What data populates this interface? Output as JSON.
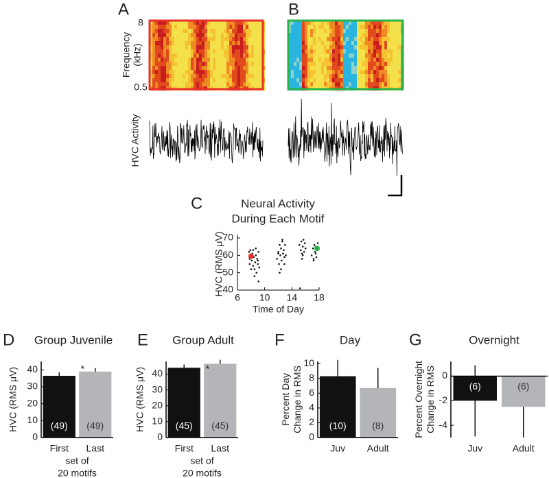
{
  "figure": {
    "panels": [
      "A",
      "B"
    ],
    "spectrogram_ylabel": [
      "Frequency",
      "(kHz)"
    ],
    "spectrogram_yticks": [
      8,
      0.5
    ],
    "trace_label": "HVC Activity"
  },
  "chart_data": [
    {
      "type": "scatter",
      "panel": "C",
      "title": [
        "Neural Activity",
        "During Each Motif"
      ],
      "ylabel": "HVC (RMS μV)",
      "xlabel": "Time of Day",
      "xlim": [
        6,
        18
      ],
      "xticks": [
        6,
        10,
        14,
        18
      ],
      "ylim": [
        40,
        70
      ],
      "yticks": [
        40,
        50,
        60,
        70
      ],
      "series": [
        {
          "color": "#111111",
          "x": [
            7.7,
            7.8,
            7.8,
            7.9,
            8.0,
            8.1,
            8.2,
            8.3,
            8.4,
            8.5,
            8.6,
            8.7,
            8.8,
            8.9,
            9.0,
            9.1,
            9.2,
            8.5,
            8.7,
            9.0,
            9.1,
            8.3,
            8.0,
            11.8,
            12.0,
            12.1,
            12.2,
            12.3,
            12.4,
            12.5,
            12.6,
            12.7,
            12.8,
            12.9,
            13.0,
            13.1,
            12.4,
            12.6,
            12.2,
            12.9,
            12.0,
            15.1,
            15.3,
            15.4,
            15.5,
            15.6,
            15.7,
            15.8,
            15.9,
            16.0,
            15.5,
            15.6,
            15.2,
            16.9,
            17.1,
            17.2,
            17.3,
            17.4,
            17.5,
            17.6,
            17.7,
            17.8,
            17.2,
            17.5
          ],
          "values": [
            62,
            58,
            55,
            63,
            60,
            57,
            61,
            54,
            59,
            52,
            56,
            60,
            50,
            58,
            55,
            62,
            53,
            48,
            64,
            57,
            45,
            63,
            52,
            58,
            62,
            55,
            66,
            60,
            64,
            57,
            68,
            61,
            63,
            59,
            66,
            60,
            52,
            69,
            50,
            55,
            61,
            66,
            63,
            68,
            61,
            65,
            69,
            62,
            67,
            64,
            58,
            60,
            41,
            60,
            64,
            58,
            66,
            62,
            65,
            59,
            63,
            67,
            57,
            61
          ]
        },
        {
          "color": "#e8302a",
          "x": [
            8.0
          ],
          "values": [
            59.5
          ]
        },
        {
          "color": "#27b24a",
          "x": [
            17.7
          ],
          "values": [
            64
          ]
        }
      ]
    },
    {
      "type": "bar",
      "panel": "D",
      "title": "Group Juvenile",
      "ylabel": [
        "HVC (RMS μV)"
      ],
      "xlabel": [
        "set of",
        "20 motifs"
      ],
      "categories": [
        "First",
        "Last"
      ],
      "values": [
        36.5,
        39
      ],
      "errors": [
        2,
        2
      ],
      "colors": [
        "#111111",
        "#b4b5b8"
      ],
      "annotations": [
        "(49)",
        "(49)"
      ],
      "marker": "*",
      "ylim": [
        0,
        45
      ],
      "yticks": [
        0,
        10,
        20,
        30,
        40
      ]
    },
    {
      "type": "bar",
      "panel": "E",
      "title": "Group Adult",
      "ylabel": [
        "HVC (RMS μV)"
      ],
      "xlabel": [
        "set of",
        "20 motifs"
      ],
      "categories": [
        "First",
        "Last"
      ],
      "values": [
        44,
        46.5
      ],
      "errors": [
        2,
        2.5
      ],
      "colors": [
        "#111111",
        "#b4b5b8"
      ],
      "annotations": [
        "(45)",
        "(45)"
      ],
      "marker": "*",
      "ylim": [
        0,
        48
      ],
      "yticks": [
        0,
        10,
        20,
        30,
        40
      ]
    },
    {
      "type": "bar",
      "panel": "F",
      "title": "Day",
      "ylabel": [
        "Percent Day",
        "Change in RMS"
      ],
      "categories": [
        "Juv",
        "Adult"
      ],
      "values": [
        8.3,
        6.7
      ],
      "errors": [
        2.2,
        2.7
      ],
      "colors": [
        "#111111",
        "#b4b5b8"
      ],
      "annotations": [
        "(10)",
        "(8)"
      ],
      "ylim": [
        0,
        10.3
      ],
      "yticks": [
        0,
        2,
        4,
        6,
        8,
        10
      ]
    },
    {
      "type": "bar",
      "panel": "G",
      "title": "Overnight",
      "ylabel": [
        "Percent Overnight",
        "Change in RMS"
      ],
      "categories": [
        "Juv",
        "Adult"
      ],
      "values": [
        -2,
        -2.5
      ],
      "errors": [
        2.9,
        2.5
      ],
      "colors": [
        "#111111",
        "#b4b5b8"
      ],
      "annotations": [
        "(6)",
        "(6)"
      ],
      "ylim": [
        -5,
        1.2
      ],
      "yticks": [
        0,
        -2,
        -4
      ]
    }
  ]
}
